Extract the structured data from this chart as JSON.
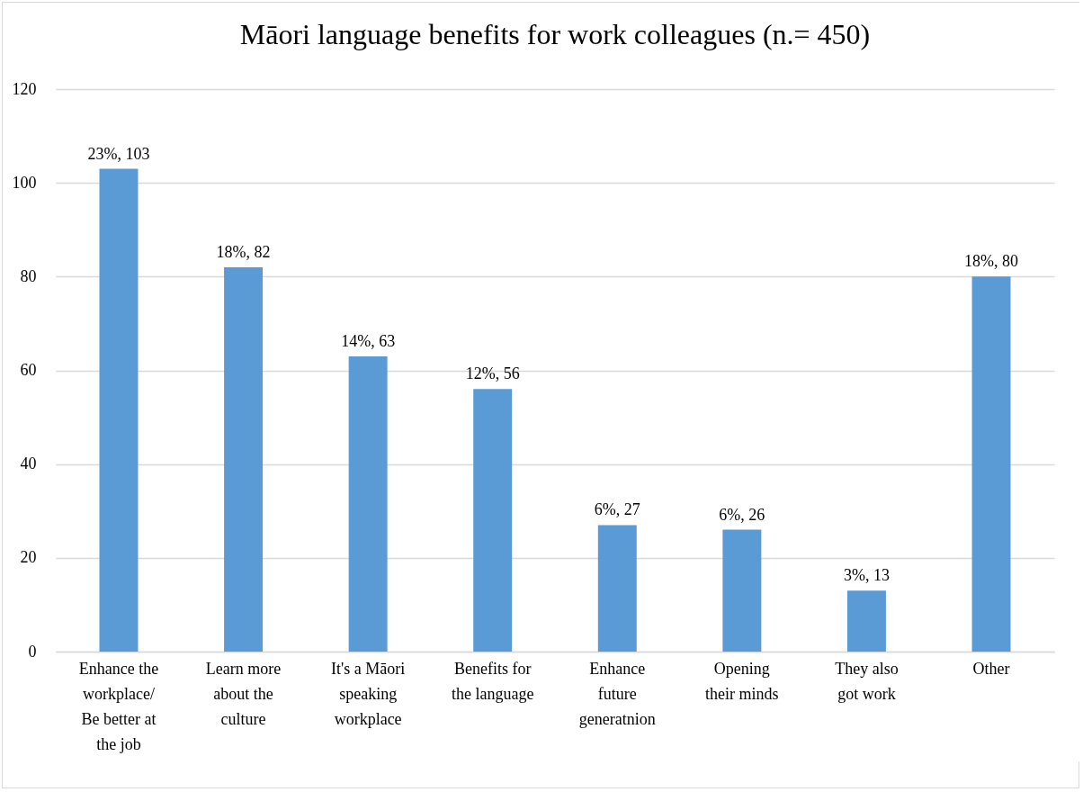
{
  "chart_data": {
    "type": "bar",
    "title": "Māori language benefits for work colleagues (n.= 450)",
    "categories": [
      "Enhance the workplace/ Be better at the job",
      "Learn more about the culture",
      "It's a Māori speaking workplace",
      "Benefits for the language",
      "Enhance future generatnion",
      "Opening their minds",
      "They also got work",
      "Other"
    ],
    "values": [
      103,
      82,
      63,
      56,
      27,
      26,
      13,
      80
    ],
    "value_labels": [
      "23%, 103",
      "18%, 82",
      "14%, 63",
      "12%, 56",
      "6%, 27",
      "6%, 26",
      "3%, 13",
      "18%, 80"
    ],
    "color": "#5b9bd5",
    "ylim": [
      0,
      120
    ],
    "yticks": [
      0,
      20,
      40,
      60,
      80,
      100,
      120
    ],
    "grid": "y"
  }
}
